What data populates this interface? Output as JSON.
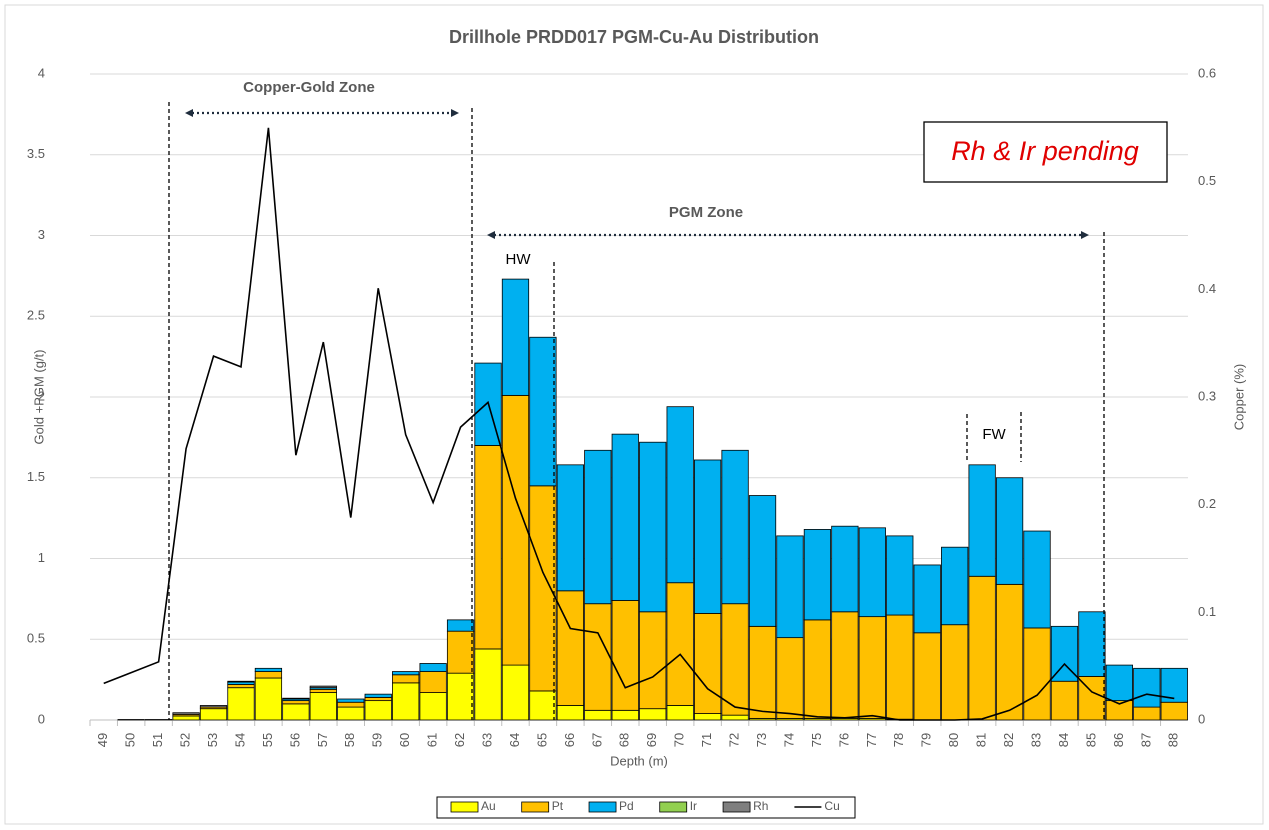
{
  "chart_data": {
    "type": "bar",
    "stacked": true,
    "title": "Drillhole PRDD017 PGM-Cu-Au Distribution",
    "x_label": "Depth (m)",
    "y_label": "Gold +PGM (g/t)",
    "y2_label": "Copper (%)",
    "categories": [
      "49",
      "50",
      "51",
      "52",
      "53",
      "54",
      "55",
      "56",
      "57",
      "58",
      "59",
      "60",
      "61",
      "62",
      "63",
      "64",
      "65",
      "66",
      "67",
      "68",
      "69",
      "70",
      "71",
      "72",
      "73",
      "74",
      "75",
      "76",
      "77",
      "78",
      "79",
      "80",
      "81",
      "82",
      "83",
      "84",
      "85",
      "86",
      "87",
      "88"
    ],
    "series": [
      {
        "name": "Au",
        "color": "#ffff00",
        "values": [
          0,
          0,
          0,
          0.025,
          0.07,
          0.2,
          0.26,
          0.1,
          0.17,
          0.08,
          0.12,
          0.23,
          0.17,
          0.29,
          0.44,
          0.34,
          0.18,
          0.09,
          0.06,
          0.06,
          0.07,
          0.09,
          0.04,
          0.03,
          0.01,
          0.01,
          0.01,
          0.01,
          0.01,
          0.005,
          0,
          0,
          0,
          0,
          0,
          0,
          0,
          0,
          0,
          0
        ]
      },
      {
        "name": "Pt",
        "color": "#ffc000",
        "values": [
          0,
          0.003,
          0.003,
          0.01,
          0.01,
          0.02,
          0.04,
          0.02,
          0.02,
          0.03,
          0.02,
          0.05,
          0.13,
          0.26,
          1.26,
          1.67,
          1.27,
          0.71,
          0.66,
          0.68,
          0.6,
          0.76,
          0.62,
          0.69,
          0.57,
          0.5,
          0.61,
          0.66,
          0.63,
          0.645,
          0.54,
          0.59,
          0.89,
          0.84,
          0.57,
          0.24,
          0.27,
          0.12,
          0.08,
          0.11
        ]
      },
      {
        "name": "Pd",
        "color": "#00b0f0",
        "values": [
          0,
          0,
          0,
          0,
          0,
          0.015,
          0.02,
          0.01,
          0.01,
          0.02,
          0.02,
          0.02,
          0.05,
          0.07,
          0.51,
          0.72,
          0.92,
          0.78,
          0.95,
          1.03,
          1.05,
          1.09,
          0.95,
          0.95,
          0.81,
          0.63,
          0.56,
          0.53,
          0.55,
          0.49,
          0.42,
          0.48,
          0.69,
          0.66,
          0.6,
          0.34,
          0.4,
          0.22,
          0.24,
          0.21
        ]
      },
      {
        "name": "Ir",
        "color": "#92d050",
        "values": [
          0,
          0,
          0,
          0,
          0,
          0,
          0,
          0,
          0,
          0,
          0,
          0,
          0,
          0,
          0,
          0,
          0,
          0,
          0,
          0,
          0,
          0,
          0,
          0,
          0,
          0,
          0,
          0,
          0,
          0,
          0,
          0,
          0,
          0,
          0,
          0,
          0,
          0,
          0,
          0
        ]
      },
      {
        "name": "Rh",
        "color": "#7f7f7f",
        "values": [
          0,
          0,
          0,
          0.01,
          0.01,
          0.005,
          0,
          0.005,
          0.01,
          0,
          0,
          0,
          0,
          0,
          0,
          0,
          0,
          0,
          0,
          0,
          0,
          0,
          0,
          0,
          0,
          0,
          0,
          0,
          0,
          0,
          0,
          0,
          0,
          0,
          0,
          0,
          0,
          0,
          0,
          0
        ]
      },
      {
        "name": "Cu",
        "color": "#000000",
        "type": "line",
        "axis": "y2",
        "values": [
          0.034,
          0.044,
          0.054,
          0.252,
          0.338,
          0.328,
          0.55,
          0.246,
          0.351,
          0.188,
          0.401,
          0.265,
          0.202,
          0.272,
          0.295,
          0.206,
          0.137,
          0.085,
          0.081,
          0.03,
          0.04,
          0.061,
          0.029,
          0.012,
          0.008,
          0.006,
          0.003,
          0.002,
          0.004,
          0,
          0,
          0,
          0.001,
          0.009,
          0.023,
          0.052,
          0.026,
          0.015,
          0.024,
          0.02
        ]
      }
    ],
    "ylim": [
      0,
      4
    ],
    "yticks": [
      0,
      0.5,
      1,
      1.5,
      2,
      2.5,
      3,
      3.5,
      4
    ],
    "y2lim": [
      0,
      0.6
    ],
    "y2ticks": [
      0,
      0.1,
      0.2,
      0.3,
      0.4,
      0.5,
      0.6
    ],
    "grid": true,
    "legend": "bottom",
    "annotations": [
      "Copper-Gold Zone",
      "PGM Zone",
      "HW",
      "FW",
      "Rh & Ir pending"
    ]
  }
}
